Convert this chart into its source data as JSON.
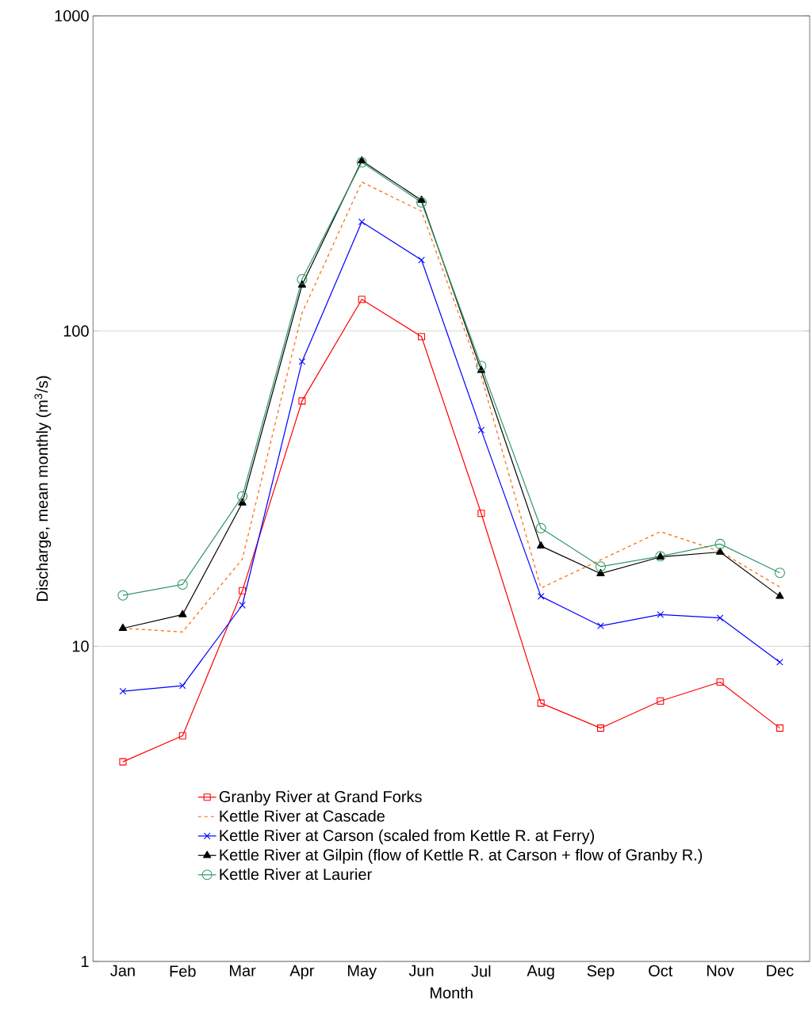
{
  "chart_data": {
    "type": "line",
    "xlabel": "Month",
    "ylabel": "Discharge, mean monthly (m$^{3}$/s)",
    "categories": [
      "Jan",
      "Feb",
      "Mar",
      "Apr",
      "May",
      "Jun",
      "Jul",
      "Aug",
      "Sep",
      "Oct",
      "Nov",
      "Dec"
    ],
    "series": [
      {
        "name": "Granby River at Grand Forks",
        "color": "#ff0000",
        "marker": "square",
        "line_style": "solid",
        "values": [
          4.3,
          5.2,
          15.0,
          60,
          126,
          96,
          26.4,
          6.6,
          5.5,
          6.7,
          7.7,
          5.5
        ]
      },
      {
        "name": "Kettle River at Cascade",
        "color": "#ff6600",
        "marker": "none",
        "line_style": "dotted",
        "values": [
          11.4,
          11.1,
          18.9,
          114,
          297,
          240,
          72,
          15.3,
          18.8,
          23.1,
          20.0,
          15.4
        ]
      },
      {
        "name": "Kettle River at Carson (scaled from Kettle R. at Ferry)",
        "color": "#0000ff",
        "marker": "cross",
        "line_style": "solid",
        "values": [
          7.2,
          7.5,
          13.5,
          80,
          222,
          168,
          48.5,
          14.4,
          11.6,
          12.6,
          12.3,
          8.9
        ]
      },
      {
        "name": "Kettle River at Gilpin (flow of Kettle R. at Carson + flow of Granby R.)",
        "color": "#000000",
        "marker": "triangle",
        "line_style": "solid",
        "values": [
          11.4,
          12.6,
          28.5,
          140,
          347,
          260,
          75,
          20.8,
          17.0,
          19.2,
          19.9,
          14.4
        ]
      },
      {
        "name": "Kettle River at Laurier",
        "color": "#339966",
        "marker": "circle",
        "line_style": "solid",
        "values": [
          14.5,
          15.7,
          29.9,
          146,
          343,
          256,
          77.5,
          23.7,
          17.9,
          19.3,
          21.1,
          17.1
        ]
      }
    ],
    "log": "y",
    "ylim": [
      1,
      1000
    ],
    "yticks": [
      1,
      10,
      100,
      1000
    ],
    "grid": "y",
    "legend": "bottom"
  }
}
